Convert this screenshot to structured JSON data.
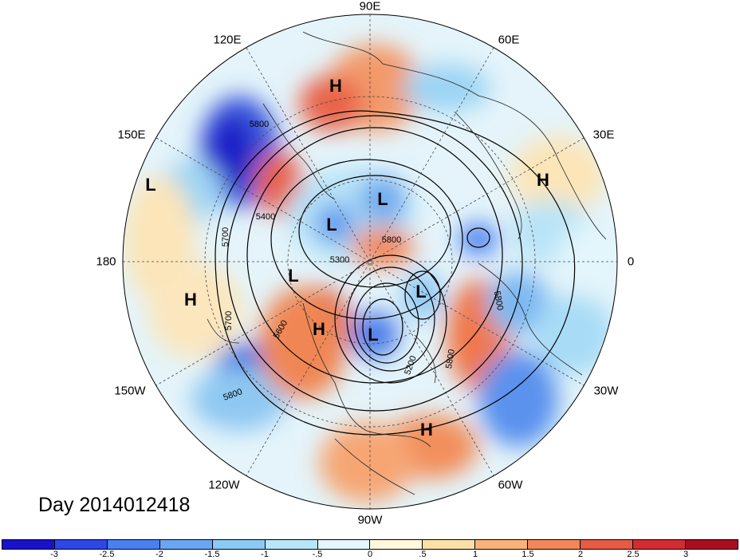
{
  "title_text": "Day 2014012418",
  "longitude_labels": {
    "lon_90e": "90E",
    "lon_60e": "60E",
    "lon_30e": "30E",
    "lon_0": "0",
    "lon_30w": "30W",
    "lon_60w": "60W",
    "lon_90w": "90W",
    "lon_120w": "120W",
    "lon_150w": "150W",
    "lon_180": "180",
    "lon_150e": "150E",
    "lon_120e": "120E"
  },
  "pressure_centers": [
    {
      "type": "H",
      "region": "north-siberia"
    },
    {
      "type": "H",
      "region": "east-europe"
    },
    {
      "type": "H",
      "region": "north-pacific"
    },
    {
      "type": "H",
      "region": "alaska"
    },
    {
      "type": "H",
      "region": "gulf-of-mexico"
    },
    {
      "type": "L",
      "region": "east-asia-pacific"
    },
    {
      "type": "L",
      "region": "arctic-siberia"
    },
    {
      "type": "L",
      "region": "east-siberia"
    },
    {
      "type": "L",
      "region": "bering"
    },
    {
      "type": "L",
      "region": "greenland"
    },
    {
      "type": "L",
      "region": "hudson-bay"
    }
  ],
  "contour_labels": [
    "5800",
    "5400",
    "5700",
    "5300",
    "5800",
    "5600",
    "5700",
    "5800",
    "5800",
    "5200",
    "5800"
  ],
  "colorbar": {
    "ticks": [
      "-3",
      "-2.5",
      "-2",
      "-1.5",
      "-1",
      "-.5",
      "0",
      ".5",
      "1",
      "1.5",
      "2",
      "2.5",
      "3"
    ],
    "colors": [
      "#1a12c8",
      "#2d46e6",
      "#4a7ff0",
      "#6aa6f2",
      "#8ccaf6",
      "#b8e6f8",
      "#e2f6fb",
      "#fff8dc",
      "#fce0a8",
      "#f8b27a",
      "#f2885a",
      "#e65a46",
      "#d02c34",
      "#a80e22"
    ]
  }
}
